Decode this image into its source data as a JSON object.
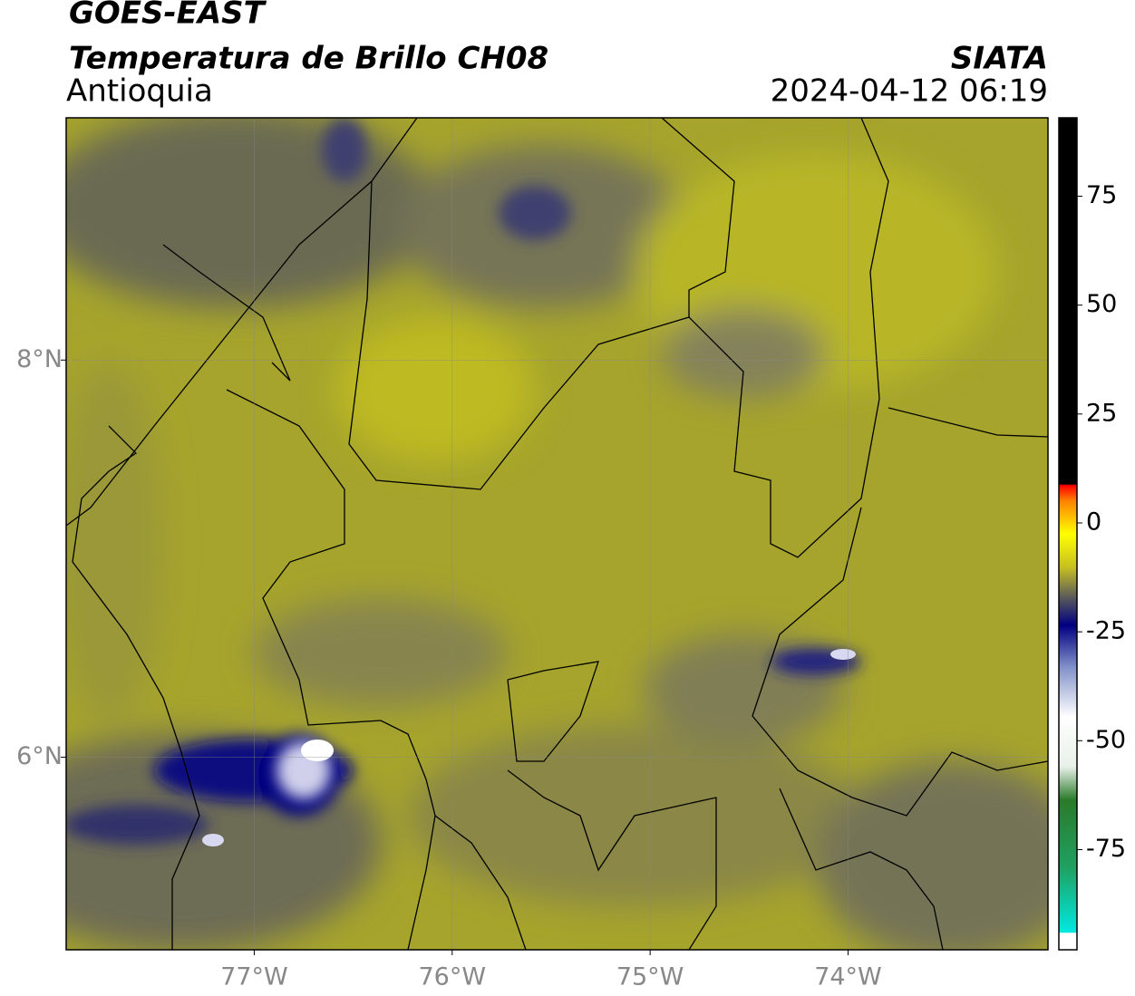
{
  "header": {
    "title": "GOES-EAST",
    "subtitle": "Temperatura de Brillo CH08",
    "region": "Antioquia",
    "source": "SIATA",
    "timestamp": "2024-04-12 06:19"
  },
  "map": {
    "xlim": [
      -77.95,
      -72.99
    ],
    "ylim": [
      5.03,
      9.22
    ],
    "xticks": [
      {
        "value": -77,
        "label": "77°W"
      },
      {
        "value": -76,
        "label": "76°W"
      },
      {
        "value": -75,
        "label": "75°W"
      },
      {
        "value": -74,
        "label": "74°W"
      }
    ],
    "yticks": [
      {
        "value": 6,
        "label": "6°N"
      },
      {
        "value": 8,
        "label": "8°N"
      }
    ],
    "grid": true
  },
  "colorbar": {
    "clim": [
      -98,
      93
    ],
    "ticks": [
      75,
      50,
      25,
      0,
      -25,
      -50,
      -75
    ]
  }
}
